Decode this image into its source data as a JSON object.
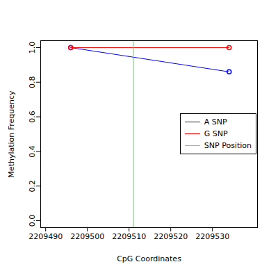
{
  "chart_data": {
    "type": "line",
    "x_label": "CpG Coordinates",
    "y_label": "Methylation Frequency",
    "x": [
      2209496,
      2209534
    ],
    "series": [
      {
        "name": "A SNP",
        "color": "#0000ff",
        "values": [
          1.0,
          0.86
        ],
        "marker": "circle"
      },
      {
        "name": "G SNP",
        "color": "#ff0000",
        "values": [
          1.0,
          1.0
        ],
        "marker": "circle"
      },
      {
        "name": "SNP Position",
        "color": "#66dd66",
        "type": "rule",
        "x": [
          2209511
        ]
      }
    ],
    "xlim": [
      2209488.8,
      2209540.8
    ],
    "xticks": [
      2209490,
      2209500,
      2209510,
      2209520,
      2209530
    ],
    "ylim": [
      -0.04,
      1.04
    ],
    "yticks": [
      {
        "value": 0,
        "label": "0.0"
      },
      0.2,
      0.4,
      0.6,
      0.8,
      {
        "value": 1,
        "label": "1.0"
      }
    ],
    "legend": "right",
    "grid": false
  }
}
